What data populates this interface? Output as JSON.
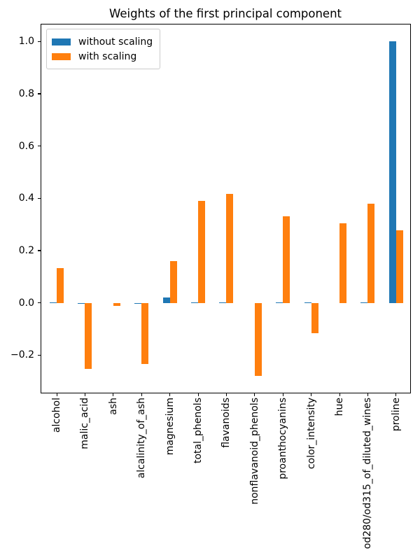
{
  "chart_data": {
    "type": "bar",
    "title": "Weights of the first principal component",
    "xlabel": "",
    "ylabel": "",
    "categories": [
      "alcohol",
      "malic_acid",
      "ash",
      "alcalinity_of_ash",
      "magnesium",
      "total_phenols",
      "flavanoids",
      "nonflavanoid_phenols",
      "proanthocyanins",
      "color_intensity",
      "hue",
      "od280/od315_of_diluted_wines",
      "proline"
    ],
    "series": [
      {
        "name": "without scaling",
        "color": "#1f77b4",
        "values": [
          0.002,
          -0.004,
          0.0,
          -0.005,
          0.021,
          0.001,
          0.002,
          0.0,
          0.001,
          0.002,
          0.0,
          0.001,
          1.0
        ]
      },
      {
        "name": "with scaling",
        "color": "#ff7f0e",
        "values": [
          0.132,
          -0.253,
          -0.013,
          -0.234,
          0.159,
          0.39,
          0.417,
          -0.28,
          0.33,
          -0.116,
          0.304,
          0.379,
          0.277
        ]
      }
    ],
    "yticks": [
      1.0,
      0.8,
      0.6,
      0.4,
      0.2,
      0.0,
      -0.2
    ],
    "ylim": [
      -0.344,
      1.065
    ],
    "grid": false,
    "legend_position": "upper left",
    "xtick_rotation": 90
  }
}
